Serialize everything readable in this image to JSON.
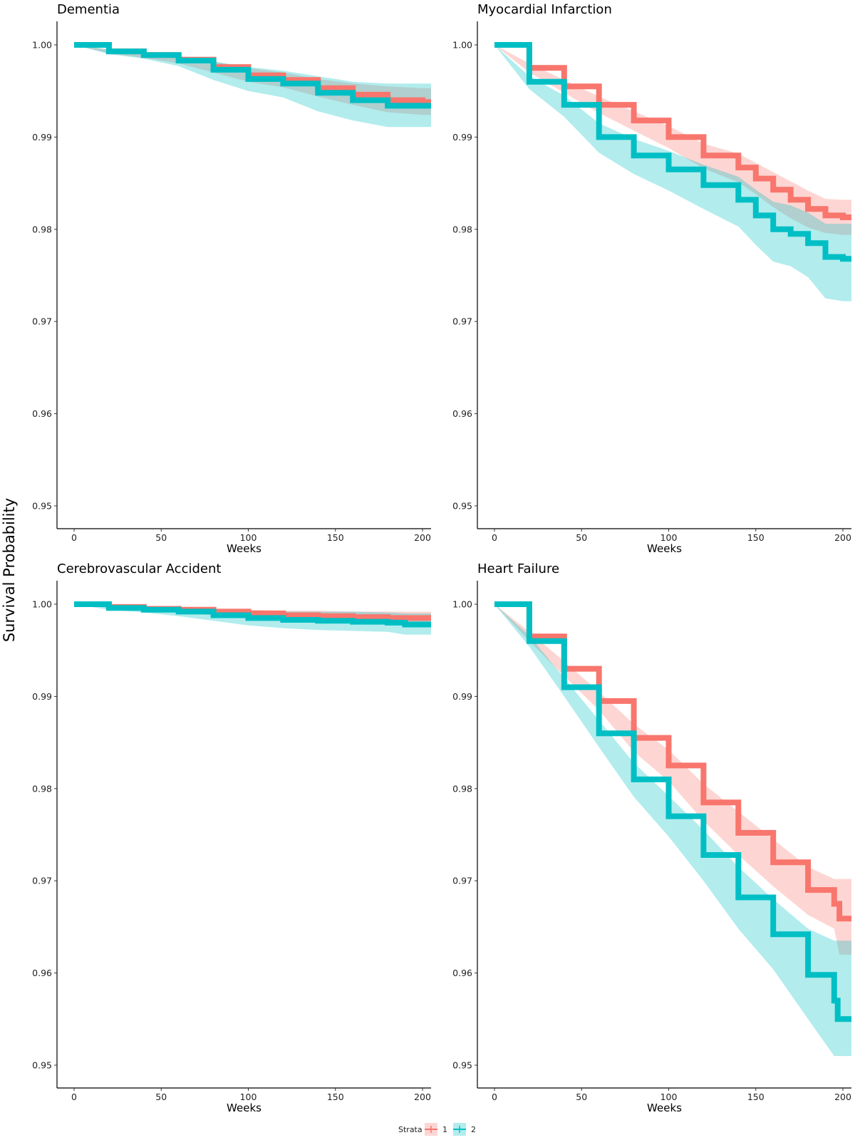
{
  "figure": {
    "y_axis_title": "Survival Probability",
    "legend": {
      "title": "Strata",
      "placement": "bottom",
      "entries": [
        {
          "label": "1",
          "color": "#F8766D"
        },
        {
          "label": "2",
          "color": "#00BFC4"
        }
      ]
    }
  },
  "chart_data": [
    {
      "type": "line",
      "title": "Dementia",
      "xlabel": "Weeks",
      "ylabel": "Survival Probability",
      "xlim": [
        0,
        210
      ],
      "ylim": [
        0.95,
        1.0
      ],
      "x_ticks": [
        0,
        50,
        100,
        150,
        200
      ],
      "y_ticks": [
        "0.95",
        "0.96",
        "0.97",
        "0.98",
        "0.99",
        "1.00"
      ],
      "grid": false,
      "series": [
        {
          "name": "1",
          "color": "#F8766D",
          "x": [
            0,
            20,
            40,
            60,
            80,
            100,
            120,
            140,
            160,
            180,
            200,
            210
          ],
          "y": [
            1.0,
            0.9993,
            0.9989,
            0.9984,
            0.9976,
            0.9967,
            0.9962,
            0.9953,
            0.9946,
            0.994,
            0.9938,
            0.9938
          ],
          "ci_upper": [
            1.0,
            0.9995,
            0.9992,
            0.9988,
            0.9982,
            0.9975,
            0.997,
            0.9963,
            0.9958,
            0.9955,
            0.9953,
            0.9953
          ],
          "ci_lower": [
            1.0,
            0.9991,
            0.9986,
            0.998,
            0.997,
            0.996,
            0.9954,
            0.9944,
            0.9935,
            0.9927,
            0.9924,
            0.9924
          ]
        },
        {
          "name": "2",
          "color": "#00BFC4",
          "x": [
            0,
            20,
            40,
            60,
            80,
            100,
            120,
            140,
            160,
            180,
            200,
            210
          ],
          "y": [
            1.0,
            0.9993,
            0.9989,
            0.9983,
            0.9973,
            0.9963,
            0.9958,
            0.9948,
            0.994,
            0.9934,
            0.9934,
            0.9934
          ],
          "ci_upper": [
            1.0,
            0.9995,
            0.9992,
            0.9988,
            0.9982,
            0.9976,
            0.9972,
            0.9966,
            0.996,
            0.9958,
            0.9958,
            0.9958
          ],
          "ci_lower": [
            1.0,
            0.999,
            0.9985,
            0.9977,
            0.9962,
            0.995,
            0.9943,
            0.9928,
            0.9918,
            0.9911,
            0.9911,
            0.9911
          ]
        }
      ]
    },
    {
      "type": "line",
      "title": "Myocardial Infarction",
      "xlabel": "Weeks",
      "ylabel": "Survival Probability",
      "xlim": [
        0,
        210
      ],
      "ylim": [
        0.95,
        1.0
      ],
      "x_ticks": [
        0,
        50,
        100,
        150,
        200
      ],
      "y_ticks": [
        "0.95",
        "0.96",
        "0.97",
        "0.98",
        "0.99",
        "1.00"
      ],
      "grid": false,
      "series": [
        {
          "name": "1",
          "color": "#F8766D",
          "x": [
            0,
            20,
            40,
            60,
            80,
            100,
            120,
            140,
            150,
            160,
            170,
            180,
            190,
            200,
            210
          ],
          "y": [
            1.0,
            0.9975,
            0.9955,
            0.9935,
            0.9918,
            0.99,
            0.988,
            0.9867,
            0.9855,
            0.9843,
            0.9832,
            0.9822,
            0.9815,
            0.9813,
            0.9813
          ],
          "ci_upper": [
            1.0,
            0.998,
            0.9962,
            0.9944,
            0.9928,
            0.9912,
            0.9893,
            0.9882,
            0.9872,
            0.9862,
            0.9852,
            0.9842,
            0.9833,
            0.9832,
            0.9832
          ],
          "ci_lower": [
            1.0,
            0.997,
            0.9948,
            0.9926,
            0.9907,
            0.9888,
            0.9866,
            0.9851,
            0.9838,
            0.9824,
            0.9812,
            0.9802,
            0.9796,
            0.9794,
            0.9794
          ]
        },
        {
          "name": "2",
          "color": "#00BFC4",
          "x": [
            0,
            20,
            40,
            60,
            80,
            100,
            120,
            140,
            150,
            160,
            170,
            180,
            190,
            200,
            210
          ],
          "y": [
            1.0,
            0.996,
            0.9935,
            0.99,
            0.988,
            0.9865,
            0.9848,
            0.9832,
            0.9815,
            0.98,
            0.9795,
            0.9785,
            0.977,
            0.9768,
            0.9768
          ],
          "ci_upper": [
            1.0,
            0.9966,
            0.9945,
            0.9915,
            0.9898,
            0.9885,
            0.987,
            0.9857,
            0.9843,
            0.983,
            0.9826,
            0.9818,
            0.9806,
            0.9806,
            0.9806
          ],
          "ci_lower": [
            1.0,
            0.9952,
            0.9922,
            0.9883,
            0.986,
            0.9842,
            0.9822,
            0.9803,
            0.9783,
            0.9765,
            0.976,
            0.9748,
            0.9725,
            0.9722,
            0.9722
          ]
        }
      ]
    },
    {
      "type": "line",
      "title": "Cerebrovascular Accident",
      "xlabel": "Weeks",
      "ylabel": "Survival Probability",
      "xlim": [
        0,
        210
      ],
      "ylim": [
        0.95,
        1.0
      ],
      "x_ticks": [
        0,
        50,
        100,
        150,
        200
      ],
      "y_ticks": [
        "0.95",
        "0.96",
        "0.97",
        "0.98",
        "0.99",
        "1.00"
      ],
      "grid": false,
      "series": [
        {
          "name": "1",
          "color": "#F8766D",
          "x": [
            0,
            20,
            40,
            60,
            80,
            100,
            120,
            140,
            160,
            180,
            200,
            210
          ],
          "y": [
            1.0,
            0.9997,
            0.9995,
            0.9994,
            0.9992,
            0.999,
            0.9988,
            0.9987,
            0.9986,
            0.9985,
            0.9985,
            0.9985
          ],
          "ci_upper": [
            1.0,
            0.9998,
            0.9997,
            0.9996,
            0.9995,
            0.9994,
            0.9993,
            0.9993,
            0.9992,
            0.9992,
            0.9992,
            0.9992
          ],
          "ci_lower": [
            1.0,
            0.9996,
            0.9993,
            0.9991,
            0.9988,
            0.9985,
            0.9982,
            0.9981,
            0.998,
            0.9979,
            0.9979,
            0.9979
          ]
        },
        {
          "name": "2",
          "color": "#00BFC4",
          "x": [
            0,
            20,
            40,
            60,
            80,
            100,
            120,
            140,
            160,
            180,
            190,
            200,
            210
          ],
          "y": [
            1.0,
            0.9996,
            0.9994,
            0.9992,
            0.9988,
            0.9985,
            0.9983,
            0.9982,
            0.9981,
            0.998,
            0.9978,
            0.9978,
            0.9978
          ],
          "ci_upper": [
            1.0,
            0.9998,
            0.9997,
            0.9996,
            0.9994,
            0.9993,
            0.9992,
            0.9992,
            0.9992,
            0.9991,
            0.999,
            0.999,
            0.999
          ],
          "ci_lower": [
            1.0,
            0.9994,
            0.9991,
            0.9987,
            0.9982,
            0.9977,
            0.9974,
            0.9972,
            0.9971,
            0.997,
            0.9967,
            0.9967,
            0.9967
          ]
        }
      ]
    },
    {
      "type": "line",
      "title": "Heart Failure",
      "xlabel": "Weeks",
      "ylabel": "Survival Probability",
      "xlim": [
        0,
        210
      ],
      "ylim": [
        0.95,
        1.0
      ],
      "x_ticks": [
        0,
        50,
        100,
        150,
        200
      ],
      "y_ticks": [
        "0.95",
        "0.96",
        "0.97",
        "0.98",
        "0.99",
        "1.00"
      ],
      "grid": false,
      "series": [
        {
          "name": "1",
          "color": "#F8766D",
          "x": [
            0,
            20,
            40,
            60,
            80,
            100,
            120,
            140,
            160,
            180,
            195,
            198,
            210
          ],
          "y": [
            1.0,
            0.9965,
            0.993,
            0.9895,
            0.9855,
            0.9825,
            0.9785,
            0.9752,
            0.972,
            0.969,
            0.9675,
            0.9659,
            0.9659
          ],
          "ci_upper": [
            1.0,
            0.997,
            0.9938,
            0.9905,
            0.987,
            0.9842,
            0.9805,
            0.9775,
            0.9745,
            0.9715,
            0.9702,
            0.9702,
            0.9702
          ],
          "ci_lower": [
            1.0,
            0.996,
            0.9922,
            0.9885,
            0.984,
            0.9808,
            0.9765,
            0.9728,
            0.9694,
            0.9663,
            0.9648,
            0.962,
            0.962
          ]
        },
        {
          "name": "2",
          "color": "#00BFC4",
          "x": [
            0,
            20,
            40,
            60,
            80,
            100,
            120,
            140,
            160,
            180,
            195,
            197,
            210
          ],
          "y": [
            1.0,
            0.996,
            0.991,
            0.986,
            0.981,
            0.977,
            0.9728,
            0.9682,
            0.9642,
            0.9598,
            0.957,
            0.955,
            0.955
          ],
          "ci_upper": [
            1.0,
            0.9966,
            0.992,
            0.9874,
            0.9828,
            0.9792,
            0.9755,
            0.9715,
            0.968,
            0.9648,
            0.9635,
            0.9635,
            0.9635
          ],
          "ci_lower": [
            1.0,
            0.9954,
            0.99,
            0.9845,
            0.9791,
            0.9748,
            0.97,
            0.9648,
            0.9604,
            0.955,
            0.951,
            0.951,
            0.951
          ]
        }
      ]
    }
  ]
}
